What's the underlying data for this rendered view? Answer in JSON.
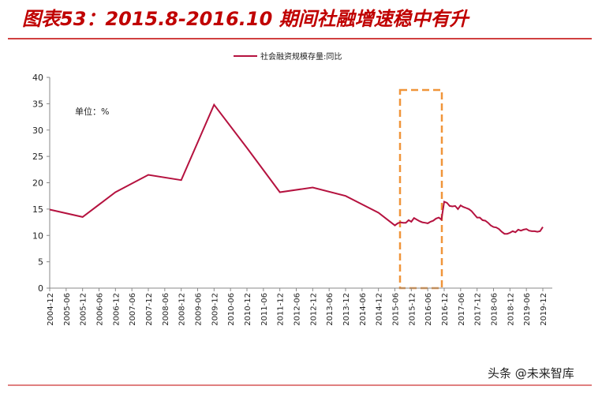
{
  "chart_data": {
    "type": "line",
    "title": "图表53：2015.8-2016.10 期间社融增速稳中有升",
    "annotation": "单位：%",
    "watermark": "头条 @未来智库",
    "x": [
      "2004-12",
      "2005-12",
      "2006-12",
      "2007-12",
      "2008-12",
      "2009-12",
      "2010-12",
      "2011-12",
      "2012-12",
      "2013-12",
      "2014-12",
      "2015-06",
      "2015-07",
      "2015-08",
      "2015-09",
      "2015-10",
      "2015-11",
      "2015-12",
      "2016-01",
      "2016-02",
      "2016-03",
      "2016-04",
      "2016-05",
      "2016-06",
      "2016-07",
      "2016-08",
      "2016-09",
      "2016-10",
      "2016-11",
      "2016-12",
      "2017-01",
      "2017-02",
      "2017-03",
      "2017-04",
      "2017-05",
      "2017-06",
      "2017-07",
      "2017-08",
      "2017-09",
      "2017-10",
      "2017-11",
      "2017-12",
      "2018-01",
      "2018-02",
      "2018-03",
      "2018-04",
      "2018-05",
      "2018-06",
      "2018-07",
      "2018-08",
      "2018-09",
      "2018-10",
      "2018-11",
      "2018-12",
      "2019-01",
      "2019-02",
      "2019-03",
      "2019-04",
      "2019-05",
      "2019-06",
      "2019-07",
      "2019-08",
      "2019-09",
      "2019-10",
      "2019-11",
      "2019-12"
    ],
    "series": [
      {
        "name": "社会融资规模存量:同比",
        "color": "#b5123f",
        "values": [
          14.9,
          13.5,
          18.2,
          21.5,
          20.5,
          34.8,
          26.6,
          18.2,
          19.1,
          17.5,
          14.3,
          11.9,
          12.3,
          12.5,
          12.4,
          12.4,
          12.9,
          12.6,
          13.3,
          13.0,
          12.7,
          12.5,
          12.4,
          12.3,
          12.6,
          12.8,
          13.2,
          13.4,
          13.0,
          16.4,
          16.2,
          15.6,
          15.5,
          15.6,
          15.0,
          15.7,
          15.4,
          15.2,
          15.0,
          14.6,
          14.0,
          13.4,
          13.4,
          12.9,
          12.8,
          12.4,
          11.9,
          11.6,
          11.5,
          11.2,
          10.7,
          10.3,
          10.3,
          10.5,
          10.8,
          10.6,
          11.1,
          10.9,
          11.1,
          11.2,
          10.9,
          10.8,
          10.8,
          10.7,
          10.8,
          11.6
        ]
      }
    ],
    "xticks": [
      "2004-12",
      "2005-06",
      "2005-12",
      "2006-06",
      "2006-12",
      "2007-06",
      "2007-12",
      "2008-06",
      "2008-12",
      "2009-06",
      "2009-12",
      "2010-06",
      "2010-12",
      "2011-06",
      "2011-12",
      "2012-06",
      "2012-12",
      "2013-06",
      "2013-12",
      "2014-06",
      "2014-12",
      "2015-06",
      "2015-12",
      "2016-06",
      "2016-12",
      "2017-06",
      "2017-12",
      "2018-06",
      "2018-12",
      "2019-06",
      "2019-12"
    ],
    "ylim": [
      0,
      40
    ],
    "yticks": [
      0,
      5,
      10,
      15,
      20,
      25,
      30,
      35,
      40
    ],
    "grid": false,
    "legend": "top"
  }
}
